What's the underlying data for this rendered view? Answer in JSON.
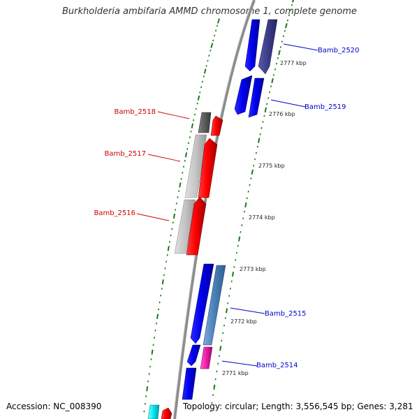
{
  "title": "Burkholderia ambifaria AMMD chromosome 1, complete genome",
  "accession_text": "Accession: NC_008390",
  "topology_text": "Topology: circular; Length: 3,556,545 bp; Genes: 3,281",
  "colors": {
    "forward_label": "#0000cc",
    "reverse_label": "#cc0000",
    "backbone": "#8c8c8c",
    "tick": "#1a7a1a"
  },
  "genes": [
    {
      "name": "Bamb_2520",
      "strand": "forward"
    },
    {
      "name": "Bamb_2519",
      "strand": "forward"
    },
    {
      "name": "Bamb_2518",
      "strand": "reverse"
    },
    {
      "name": "Bamb_2517",
      "strand": "reverse"
    },
    {
      "name": "Bamb_2516",
      "strand": "reverse"
    },
    {
      "name": "Bamb_2515",
      "strand": "forward"
    },
    {
      "name": "Bamb_2514",
      "strand": "forward"
    }
  ],
  "kbp_marks": [
    "2777 kbp",
    "2776 kbp",
    "2775 kbp",
    "2774 kbp",
    "2773 kbp",
    "2772 kbp",
    "2771 kbp"
  ]
}
